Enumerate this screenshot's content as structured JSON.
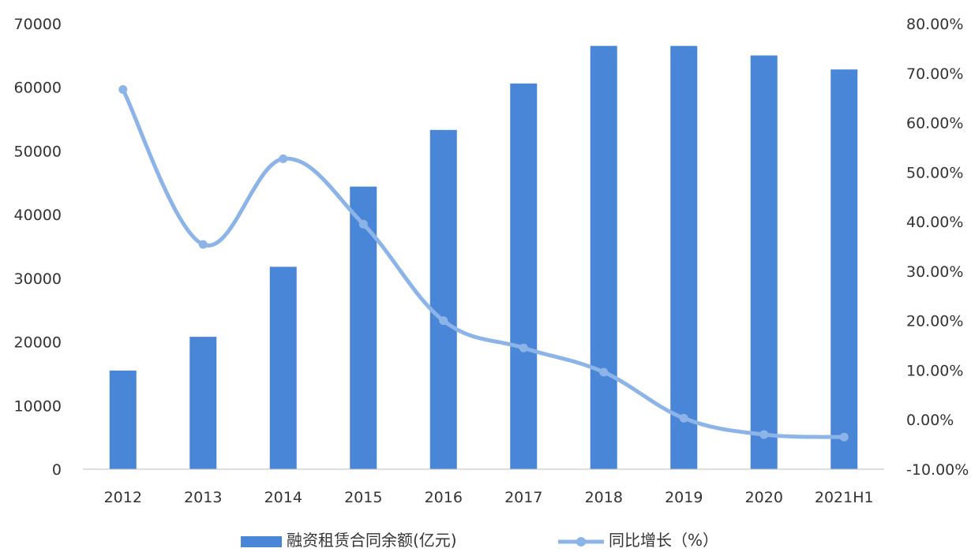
{
  "chart_data": {
    "type": "bar",
    "categories": [
      "2012",
      "2013",
      "2014",
      "2015",
      "2016",
      "2017",
      "2018",
      "2019",
      "2020",
      "2021H1"
    ],
    "series": [
      {
        "name": "融资租赁合同余额(亿元)",
        "type": "bar",
        "axis": "left",
        "values": [
          15500,
          20800,
          31800,
          44400,
          53300,
          60600,
          66500,
          66500,
          65000,
          62800
        ]
      },
      {
        "name": "同比增长（%）",
        "type": "line",
        "axis": "right",
        "values": [
          66.7,
          35.4,
          52.7,
          39.5,
          20.0,
          14.5,
          9.6,
          0.3,
          -3.0,
          -3.5
        ]
      }
    ],
    "y_left": {
      "ylim": [
        0,
        70000
      ],
      "ticks": [
        "0",
        "10000",
        "20000",
        "30000",
        "40000",
        "50000",
        "60000",
        "70000"
      ]
    },
    "y_right": {
      "ylim": [
        -10,
        80
      ],
      "ticks": [
        "-10.00%",
        "0.00%",
        "10.00%",
        "20.00%",
        "30.00%",
        "40.00%",
        "50.00%",
        "60.00%",
        "70.00%",
        "80.00%"
      ]
    },
    "grid": false,
    "legend_position": "bottom",
    "colors": {
      "bar": "#4a86d8",
      "line": "#8db4e8",
      "axis": "#bfbfbf",
      "text": "#333333"
    }
  }
}
